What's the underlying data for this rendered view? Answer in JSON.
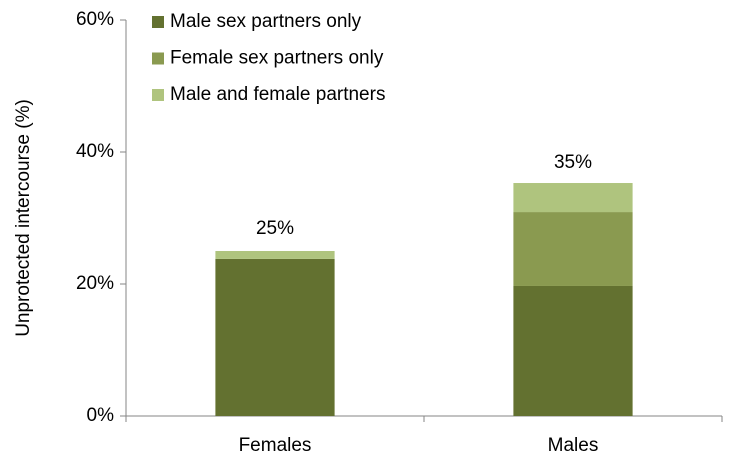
{
  "chart_data": {
    "type": "stacked-bar",
    "y_label": "Unprotected intercourse (%)",
    "categories": [
      "Females",
      "Males"
    ],
    "series": [
      {
        "name": "Male sex partners only",
        "color": "#637130",
        "values": [
          23.8,
          19.7
        ]
      },
      {
        "name": "Female sex partners only",
        "color": "#8a9a50",
        "values": [
          0,
          11.2
        ]
      },
      {
        "name": "Male and female partners",
        "color": "#afc47e",
        "values": [
          1.2,
          4.4
        ]
      }
    ],
    "totals": [
      25,
      35
    ],
    "total_labels": [
      "25%",
      "35%"
    ],
    "ylim": [
      0,
      60
    ],
    "yticks": [
      {
        "value": 0,
        "label": "0%"
      },
      {
        "value": 20,
        "label": "20%"
      },
      {
        "value": 40,
        "label": "40%"
      },
      {
        "value": 60,
        "label": "60%"
      }
    ],
    "legend": "top-left"
  }
}
